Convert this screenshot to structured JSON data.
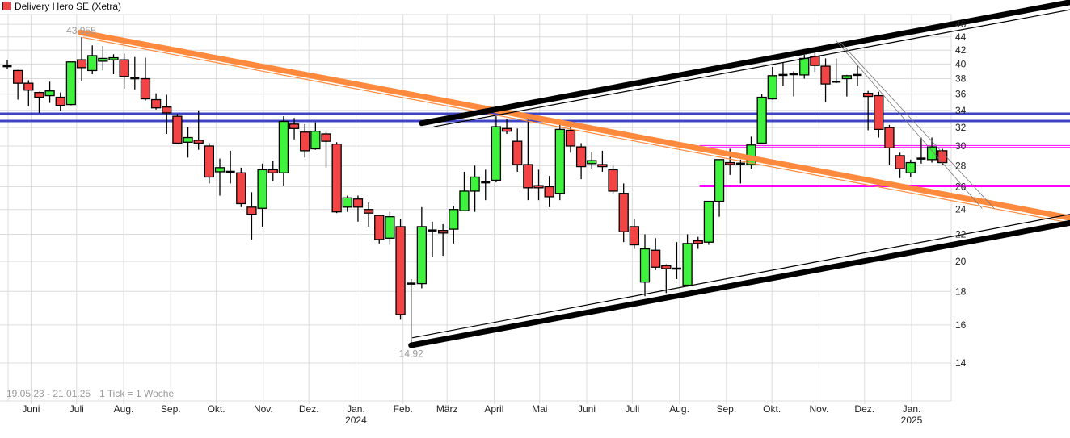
{
  "legend": {
    "label": "Delivery Hero SE (Xetra)"
  },
  "chart_data": {
    "type": "candlestick",
    "title": "Delivery Hero SE (Xetra)",
    "period": "19.05.23 - 21.01.25",
    "interval": "1 Tick = 1 Woche",
    "y_scale": "log",
    "ylim": [
      13.2,
      47
    ],
    "grid": true,
    "legend_position": "top-left",
    "y_ticks": [
      14,
      16,
      18,
      20,
      22,
      24,
      26,
      28,
      30,
      32,
      34,
      36,
      38,
      40,
      42,
      44,
      46
    ],
    "x_ticks": [
      {
        "label": "Juni",
        "date": "01.06.23"
      },
      {
        "label": "Juli",
        "date": "01.07.23"
      },
      {
        "label": "Aug.",
        "date": "01.08.23"
      },
      {
        "label": "Sep.",
        "date": "01.09.23"
      },
      {
        "label": "Okt.",
        "date": "01.10.23"
      },
      {
        "label": "Nov.",
        "date": "01.11.23"
      },
      {
        "label": "Dez.",
        "date": "01.12.23"
      },
      {
        "label": "Jan.",
        "year": "2024",
        "date": "01.01.24"
      },
      {
        "label": "Feb.",
        "date": "01.02.24"
      },
      {
        "label": "März",
        "date": "01.03.24"
      },
      {
        "label": "April",
        "date": "01.04.24"
      },
      {
        "label": "Mai",
        "date": "01.05.24"
      },
      {
        "label": "Juni",
        "date": "01.06.24"
      },
      {
        "label": "Juli",
        "date": "01.07.24"
      },
      {
        "label": "Aug.",
        "date": "01.08.24"
      },
      {
        "label": "Sep.",
        "date": "01.09.24"
      },
      {
        "label": "Okt.",
        "date": "01.10.24"
      },
      {
        "label": "Nov.",
        "date": "01.11.24"
      },
      {
        "label": "Dez.",
        "date": "01.12.24"
      },
      {
        "label": "Jan.",
        "year": "2025",
        "date": "01.01.25"
      }
    ],
    "candle_fields": [
      "open",
      "high",
      "low",
      "close"
    ],
    "candles": [
      [
        39.6,
        40.6,
        39.3,
        39.8
      ],
      [
        39.1,
        39.2,
        35.3,
        37.4
      ],
      [
        37.4,
        37.8,
        34.5,
        36.5
      ],
      [
        36.2,
        36.3,
        33.7,
        35.6
      ],
      [
        35.8,
        37.6,
        34.9,
        36.4
      ],
      [
        35.6,
        36.2,
        33.9,
        34.6
      ],
      [
        34.7,
        40.3,
        34.6,
        40.3
      ],
      [
        40.6,
        43.955,
        37.7,
        39.5
      ],
      [
        39.1,
        42.7,
        38.6,
        41.2
      ],
      [
        40.4,
        42.6,
        39.1,
        40.8
      ],
      [
        40.6,
        41.4,
        38.6,
        40.9
      ],
      [
        40.6,
        41.5,
        36.7,
        38.3
      ],
      [
        38.1,
        41.0,
        36.6,
        38.0
      ],
      [
        38.0,
        40.9,
        35.2,
        35.4
      ],
      [
        35.3,
        36.1,
        34.1,
        34.3
      ],
      [
        34.4,
        35.9,
        31.3,
        33.7
      ],
      [
        33.3,
        33.6,
        30.2,
        30.3
      ],
      [
        30.4,
        32.1,
        28.8,
        30.9
      ],
      [
        30.6,
        34.0,
        29.6,
        30.3
      ],
      [
        30.0,
        30.3,
        26.3,
        26.9
      ],
      [
        27.4,
        28.7,
        25.2,
        27.8
      ],
      [
        27.4,
        29.5,
        26.3,
        27.4
      ],
      [
        27.3,
        27.8,
        24.2,
        24.5
      ],
      [
        24.2,
        25.5,
        21.6,
        23.6
      ],
      [
        24.1,
        28.2,
        22.6,
        27.6
      ],
      [
        27.6,
        28.5,
        26.5,
        27.3
      ],
      [
        27.3,
        33.3,
        26.1,
        32.7
      ],
      [
        32.4,
        33.1,
        30.7,
        31.9
      ],
      [
        31.5,
        32.4,
        28.8,
        29.5
      ],
      [
        29.7,
        32.6,
        29.6,
        31.6
      ],
      [
        31.3,
        31.5,
        27.8,
        30.5
      ],
      [
        30.2,
        30.4,
        23.7,
        23.8
      ],
      [
        24.2,
        25.2,
        23.8,
        25.0
      ],
      [
        24.9,
        25.2,
        23.0,
        24.2
      ],
      [
        24.0,
        24.6,
        22.6,
        23.7
      ],
      [
        23.5,
        23.5,
        21.3,
        21.6
      ],
      [
        21.7,
        23.8,
        21.2,
        23.4
      ],
      [
        22.6,
        23.2,
        16.3,
        16.6
      ],
      [
        18.5,
        18.8,
        14.92,
        18.5
      ],
      [
        18.5,
        24.2,
        18.2,
        22.6
      ],
      [
        22.3,
        23.0,
        20.3,
        22.3
      ],
      [
        22.3,
        22.8,
        20.4,
        22.1
      ],
      [
        22.4,
        24.3,
        21.3,
        24.0
      ],
      [
        23.9,
        27.4,
        23.9,
        25.6
      ],
      [
        25.6,
        28.0,
        23.8,
        26.9
      ],
      [
        26.4,
        27.6,
        24.8,
        26.4
      ],
      [
        26.6,
        33.3,
        26.4,
        32.1
      ],
      [
        31.9,
        33.0,
        31.3,
        31.6
      ],
      [
        30.5,
        31.9,
        27.4,
        28.1
      ],
      [
        28.1,
        32.9,
        24.8,
        25.9
      ],
      [
        26.1,
        27.6,
        24.8,
        25.9
      ],
      [
        26.0,
        27.0,
        24.2,
        25.1
      ],
      [
        25.4,
        32.3,
        24.8,
        31.8
      ],
      [
        31.7,
        32.2,
        29.3,
        30.0
      ],
      [
        29.9,
        30.3,
        26.7,
        27.9
      ],
      [
        28.2,
        29.4,
        27.7,
        28.5
      ],
      [
        28.1,
        29.5,
        27.4,
        27.9
      ],
      [
        27.6,
        28.0,
        25.4,
        25.6
      ],
      [
        25.4,
        26.3,
        21.4,
        22.2
      ],
      [
        22.6,
        23.2,
        20.9,
        21.2
      ],
      [
        18.6,
        22.0,
        17.7,
        20.9
      ],
      [
        20.8,
        21.7,
        19.4,
        19.6
      ],
      [
        19.7,
        19.8,
        17.9,
        19.5
      ],
      [
        19.5,
        21.4,
        18.8,
        19.5
      ],
      [
        18.4,
        22.0,
        18.3,
        21.3
      ],
      [
        21.5,
        21.8,
        20.9,
        21.3
      ],
      [
        21.4,
        24.7,
        21.2,
        24.7
      ],
      [
        24.7,
        28.6,
        23.4,
        28.6
      ],
      [
        28.3,
        29.7,
        27.1,
        28.1
      ],
      [
        28.2,
        28.6,
        26.3,
        28.2
      ],
      [
        28.1,
        31.0,
        27.7,
        30.1
      ],
      [
        30.3,
        36.0,
        30.3,
        35.6
      ],
      [
        35.4,
        39.6,
        35.3,
        38.4
      ],
      [
        38.4,
        40.2,
        37.1,
        38.6
      ],
      [
        38.6,
        39.0,
        35.7,
        38.6
      ],
      [
        38.5,
        41.3,
        38.0,
        40.8
      ],
      [
        41.1,
        41.6,
        38.9,
        39.8
      ],
      [
        39.7,
        40.8,
        35.0,
        37.3
      ],
      [
        37.6,
        40.8,
        37.4,
        37.6
      ],
      [
        38.0,
        38.5,
        35.7,
        38.4
      ],
      [
        38.5,
        39.8,
        37.1,
        38.5
      ],
      [
        36.1,
        36.4,
        31.7,
        35.7
      ],
      [
        35.8,
        36.3,
        30.9,
        31.8
      ],
      [
        32.0,
        32.3,
        28.1,
        29.8
      ],
      [
        29.0,
        29.3,
        26.8,
        27.7
      ],
      [
        27.3,
        28.6,
        26.9,
        28.3
      ],
      [
        28.7,
        30.9,
        28.2,
        28.7
      ],
      [
        28.6,
        30.9,
        28.3,
        29.9
      ],
      [
        29.5,
        29.7,
        28.1,
        28.3
      ]
    ],
    "extremes": {
      "high": {
        "text": "43,955",
        "candle": 7
      },
      "low": {
        "text": "14,92",
        "candle": 38
      }
    },
    "trend_lines": [
      {
        "from": [
          "06.07.23",
          44.7
        ],
        "to": [
          "18.04.25",
          23.3
        ],
        "color": "#ff8a3d",
        "weight": "thick"
      },
      {
        "from": [
          "08.07.23",
          43.9
        ],
        "to": [
          "18.04.25",
          22.9
        ],
        "color": "#ff8a3d",
        "weight": "thin"
      },
      {
        "from": [
          "16.02.24",
          32.5
        ],
        "to": [
          "18.04.25",
          49.7
        ],
        "color": "#000000",
        "weight": "thick"
      },
      {
        "from": [
          "24.02.24",
          32.1
        ],
        "to": [
          "18.04.25",
          48.4
        ],
        "color": "#000000",
        "weight": "thin"
      },
      {
        "from": [
          "09.02.24",
          14.9
        ],
        "to": [
          "18.04.25",
          22.9
        ],
        "color": "#000000",
        "weight": "thick"
      },
      {
        "from": [
          "10.02.24",
          15.3
        ],
        "to": [
          "18.04.25",
          23.6
        ],
        "color": "#000000",
        "weight": "thin"
      },
      {
        "from": [
          "18.11.24",
          43.1
        ],
        "to": [
          "27.02.25",
          24.1
        ],
        "color": "#777777",
        "weight": "hair"
      },
      {
        "from": [
          "15.11.24",
          43.4
        ],
        "to": [
          "19.02.25",
          24.1
        ],
        "color": "#777777",
        "weight": "hair"
      }
    ],
    "horizontal_lines": [
      {
        "price": 33.6,
        "from": "full",
        "color": "#3f44c4",
        "weight": "medium"
      },
      {
        "price": 32.75,
        "from": "full",
        "color": "#3f44c4",
        "weight": "medium"
      },
      {
        "price": 30.05,
        "from": "17.08.24",
        "color": "#ff00ff",
        "weight": "hair"
      },
      {
        "price": 29.85,
        "from": "17.08.24",
        "color": "#ff00ff",
        "weight": "hair"
      },
      {
        "price": 26.15,
        "from": "17.08.24",
        "color": "#ff00ff",
        "weight": "hair"
      },
      {
        "price": 26.0,
        "from": "17.08.24",
        "color": "#ff00ff",
        "weight": "hair"
      }
    ],
    "colors": {
      "up": "#3ef23e",
      "down": "#f24444",
      "grid": "#dcdcdc"
    }
  }
}
